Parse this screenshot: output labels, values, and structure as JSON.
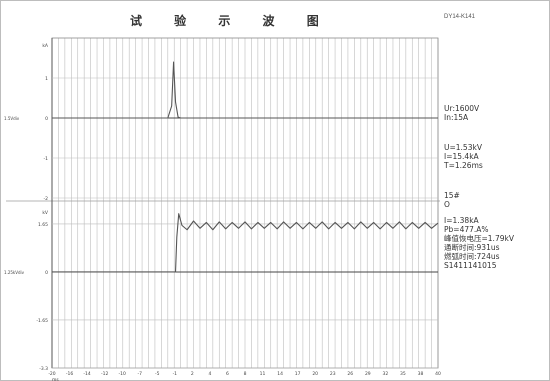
{
  "title": "试 验 示 波 图",
  "doc_id": "DY14-K141",
  "params_top": [
    "Ur:1600V",
    "In:15A"
  ],
  "params_mid": [
    "U=1.53kV",
    "I=15.4kA",
    "T=1.26ms"
  ],
  "params_bot": [
    "15#",
    "O",
    "I=1.38kA",
    "Pb=477.A%",
    "峰值恢电压=1.79kV",
    "通断时间:931us",
    "燃弧时间:724us",
    "S1411141015"
  ],
  "chart_data": [
    {
      "type": "line",
      "title": "",
      "ylabel": "1.5Vdiv",
      "y_unit": "kA",
      "yticks": [
        "1",
        "0",
        "-1",
        "-2"
      ],
      "ylim": [
        -2,
        2
      ],
      "series": [
        {
          "values": [
            [
              -20,
              0
            ],
            [
              -2,
              0
            ],
            [
              -1.4,
              0.3
            ],
            [
              -1.1,
              1.4
            ],
            [
              -0.8,
              0.4
            ],
            [
              -0.4,
              0.02
            ],
            [
              0,
              0
            ],
            [
              40,
              0
            ]
          ]
        }
      ]
    },
    {
      "type": "line",
      "title": "",
      "ylabel": "1.25kVdiv",
      "y_unit": "kV",
      "yticks": [
        "1.65",
        "0",
        "-1.65",
        "-3.3"
      ],
      "ylim": [
        -3.3,
        2.3
      ],
      "xlabel": "ms",
      "xticks": [
        "-20",
        "-16",
        "-14",
        "-12",
        "-10",
        "-7",
        "-5",
        "-1",
        "2",
        "4",
        "6",
        "8",
        "11",
        "14",
        "17",
        "20",
        "23",
        "26",
        "29",
        "32",
        "35",
        "38",
        "40"
      ],
      "xlim": [
        -20,
        40
      ],
      "series": [
        {
          "values": [
            [
              -20,
              0
            ],
            [
              -0.8,
              0
            ],
            [
              -0.6,
              1.2
            ],
            [
              -0.3,
              2.0
            ],
            [
              0.2,
              1.6
            ],
            [
              1.0,
              1.45
            ],
            [
              2.0,
              1.75
            ],
            [
              3.0,
              1.5
            ],
            [
              4.0,
              1.7
            ],
            [
              5.0,
              1.45
            ],
            [
              6.0,
              1.72
            ],
            [
              7.0,
              1.48
            ],
            [
              8.0,
              1.7
            ],
            [
              9.0,
              1.5
            ],
            [
              10.0,
              1.72
            ],
            [
              11.0,
              1.48
            ],
            [
              12.0,
              1.7
            ],
            [
              13.0,
              1.5
            ],
            [
              14.0,
              1.7
            ],
            [
              15.0,
              1.48
            ],
            [
              16.0,
              1.72
            ],
            [
              17.0,
              1.5
            ],
            [
              18.0,
              1.7
            ],
            [
              19.0,
              1.48
            ],
            [
              20.0,
              1.7
            ],
            [
              21.0,
              1.5
            ],
            [
              22.0,
              1.72
            ],
            [
              23.0,
              1.48
            ],
            [
              24.0,
              1.7
            ],
            [
              25.0,
              1.5
            ],
            [
              26.0,
              1.7
            ],
            [
              27.0,
              1.48
            ],
            [
              28.0,
              1.72
            ],
            [
              29.0,
              1.5
            ],
            [
              30.0,
              1.7
            ],
            [
              31.0,
              1.48
            ],
            [
              32.0,
              1.7
            ],
            [
              33.0,
              1.5
            ],
            [
              34.0,
              1.72
            ],
            [
              35.0,
              1.48
            ],
            [
              36.0,
              1.7
            ],
            [
              37.0,
              1.5
            ],
            [
              38.0,
              1.7
            ],
            [
              39.0,
              1.5
            ],
            [
              40.0,
              1.68
            ]
          ]
        }
      ]
    }
  ]
}
